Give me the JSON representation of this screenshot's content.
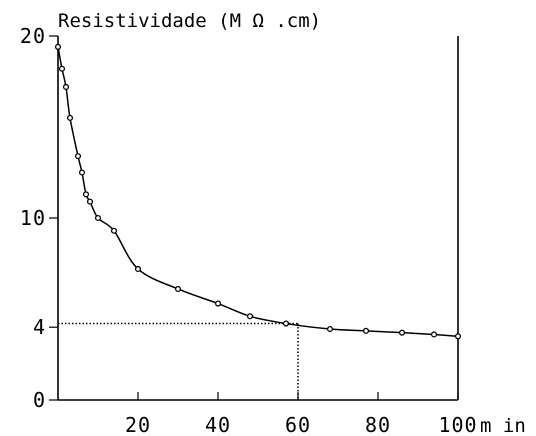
{
  "chart_data": {
    "type": "line",
    "title": "",
    "ylabel": "Resistividade (M Ω .cm)",
    "xlabel": "m in",
    "xlim": [
      0,
      100
    ],
    "ylim": [
      0,
      20
    ],
    "x_ticks": [
      20,
      40,
      60,
      80,
      100
    ],
    "x_tick_labels": [
      "20",
      "40",
      "60",
      "80",
      "100"
    ],
    "y_ticks": [
      0,
      4,
      10,
      20
    ],
    "y_tick_labels": [
      "0",
      "4",
      "10",
      "20"
    ],
    "grid": false,
    "legend": "none",
    "line_color": "#000000",
    "marker": "open-circle",
    "series": [
      {
        "x": [
          0,
          1,
          2,
          3,
          5,
          6,
          7,
          8,
          10,
          14,
          20,
          30,
          40,
          48,
          57,
          68,
          77,
          86,
          94,
          100
        ],
        "y": [
          19.4,
          18.2,
          17.2,
          15.5,
          13.4,
          12.5,
          11.3,
          10.9,
          10.0,
          9.3,
          7.2,
          6.1,
          5.3,
          4.6,
          4.2,
          3.9,
          3.8,
          3.7,
          3.6,
          3.5
        ]
      }
    ],
    "reference_point": {
      "x": 60,
      "y": 4.2
    }
  }
}
